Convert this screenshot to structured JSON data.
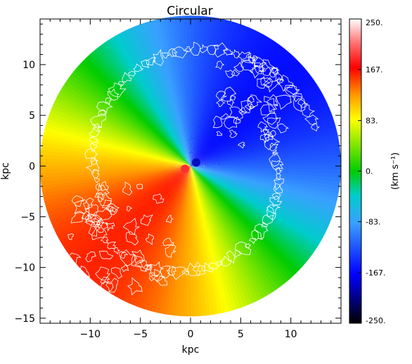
{
  "chart_data": {
    "type": "heatmap",
    "title": "Circular",
    "xlabel": "kpc",
    "ylabel": "kpc",
    "xlim": [
      -15,
      15
    ],
    "ylim": [
      -15.5,
      14.5
    ],
    "x_ticks": [
      -10,
      -5,
      0,
      5,
      10
    ],
    "y_ticks": [
      -15,
      -10,
      -5,
      0,
      5,
      10
    ],
    "disk_radius_kpc": 15,
    "colorbar": {
      "label": "(km s⁻¹)",
      "range": [
        -250,
        250
      ],
      "tick_values": [
        250,
        167,
        83,
        0,
        -83,
        -167,
        -250
      ],
      "tick_labels": [
        "250.",
        "167.",
        "83.",
        "0.",
        "-83.",
        "-167.",
        "-250."
      ]
    },
    "velocity_field": {
      "description_of_pattern": "receding (positive) side to the lower-left, approaching (negative) side to the upper-right",
      "max_abs_velocity": 160
    },
    "colors": {
      "contour": "#ffffff",
      "zero_velocity": "#10d010",
      "positive_max": "#ff0000",
      "negative_max": "#0a14ff"
    }
  }
}
